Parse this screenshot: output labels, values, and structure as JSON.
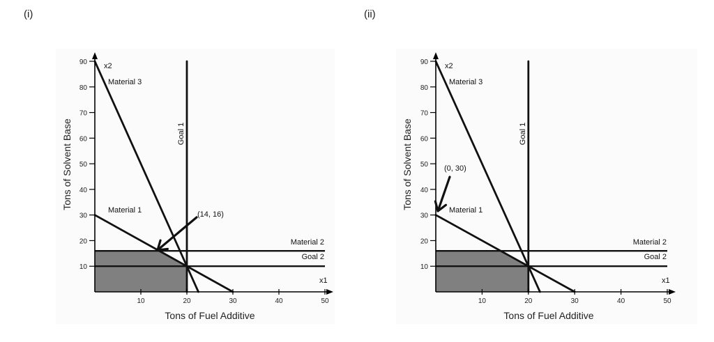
{
  "panels": [
    {
      "label": "(i)"
    },
    {
      "label": "(ii)"
    }
  ],
  "chart_data": [
    {
      "type": "line",
      "title": "",
      "xlabel": "Tons of Fuel Additive",
      "ylabel": "Tons of Solvent Base",
      "x_axis_name": "x1",
      "y_axis_name": "x2",
      "xlim": [
        0,
        50
      ],
      "ylim": [
        0,
        90
      ],
      "x_ticks": [
        10,
        20,
        30,
        40,
        50
      ],
      "y_ticks": [
        10,
        20,
        30,
        40,
        50,
        60,
        70,
        80,
        90
      ],
      "grid": false,
      "feasible_region": [
        [
          0,
          0
        ],
        [
          20,
          0
        ],
        [
          20,
          10
        ],
        [
          14,
          16
        ],
        [
          0,
          16
        ]
      ],
      "series": [
        {
          "name": "Material 1",
          "points": [
            [
              0,
              30
            ],
            [
              30,
              0
            ]
          ]
        },
        {
          "name": "Material 2",
          "points": [
            [
              0,
              16
            ],
            [
              50,
              16
            ]
          ]
        },
        {
          "name": "Material 3",
          "points": [
            [
              0,
              90
            ],
            [
              22.5,
              0
            ]
          ]
        },
        {
          "name": "Goal 1",
          "points": [
            [
              20,
              0
            ],
            [
              20,
              90
            ]
          ]
        },
        {
          "name": "Goal 2",
          "points": [
            [
              0,
              10
            ],
            [
              50,
              10
            ]
          ]
        }
      ],
      "annotation": {
        "text": "(14, 16)",
        "point": [
          14,
          16
        ]
      }
    },
    {
      "type": "line",
      "title": "",
      "xlabel": "Tons of Fuel Additive",
      "ylabel": "Tons of Solvent Base",
      "x_axis_name": "x1",
      "y_axis_name": "x2",
      "xlim": [
        0,
        50
      ],
      "ylim": [
        0,
        90
      ],
      "x_ticks": [
        10,
        20,
        30,
        40,
        50
      ],
      "y_ticks": [
        10,
        20,
        30,
        40,
        50,
        60,
        70,
        80,
        90
      ],
      "grid": false,
      "feasible_region": [
        [
          0,
          0
        ],
        [
          20,
          0
        ],
        [
          20,
          10
        ],
        [
          14,
          16
        ],
        [
          0,
          16
        ]
      ],
      "series": [
        {
          "name": "Material 1",
          "points": [
            [
              0,
              30
            ],
            [
              30,
              0
            ]
          ]
        },
        {
          "name": "Material 2",
          "points": [
            [
              0,
              16
            ],
            [
              50,
              16
            ]
          ]
        },
        {
          "name": "Material 3",
          "points": [
            [
              0,
              90
            ],
            [
              22.5,
              0
            ]
          ]
        },
        {
          "name": "Goal 1",
          "points": [
            [
              20,
              0
            ],
            [
              20,
              90
            ]
          ]
        },
        {
          "name": "Goal 2",
          "points": [
            [
              0,
              10
            ],
            [
              50,
              10
            ]
          ]
        }
      ],
      "annotation": {
        "text": "(0, 30)",
        "point": [
          0,
          30
        ]
      }
    }
  ]
}
